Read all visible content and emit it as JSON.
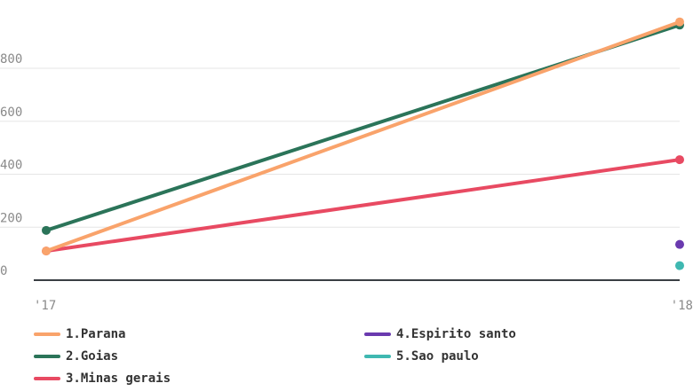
{
  "chart_data": {
    "type": "line",
    "x": [
      "'17",
      "'18"
    ],
    "y_ticks": [
      "0",
      "200",
      "400",
      "600",
      "800"
    ],
    "ylim": [
      0,
      1000
    ],
    "grid": true,
    "legend_position": "bottom",
    "series": [
      {
        "name": "1.Parana",
        "color": "#f9a36b",
        "values": [
          110,
          975
        ]
      },
      {
        "name": "2.Goias",
        "color": "#2b7459",
        "values": [
          188,
          963
        ]
      },
      {
        "name": "3.Minas gerais",
        "color": "#e84a62",
        "values": [
          110,
          455
        ]
      },
      {
        "name": "4.Espirito santo",
        "color": "#6a3aaf",
        "values": [
          null,
          135
        ]
      },
      {
        "name": "5.Sao paulo",
        "color": "#3fb8b1",
        "values": [
          null,
          55
        ]
      }
    ]
  }
}
